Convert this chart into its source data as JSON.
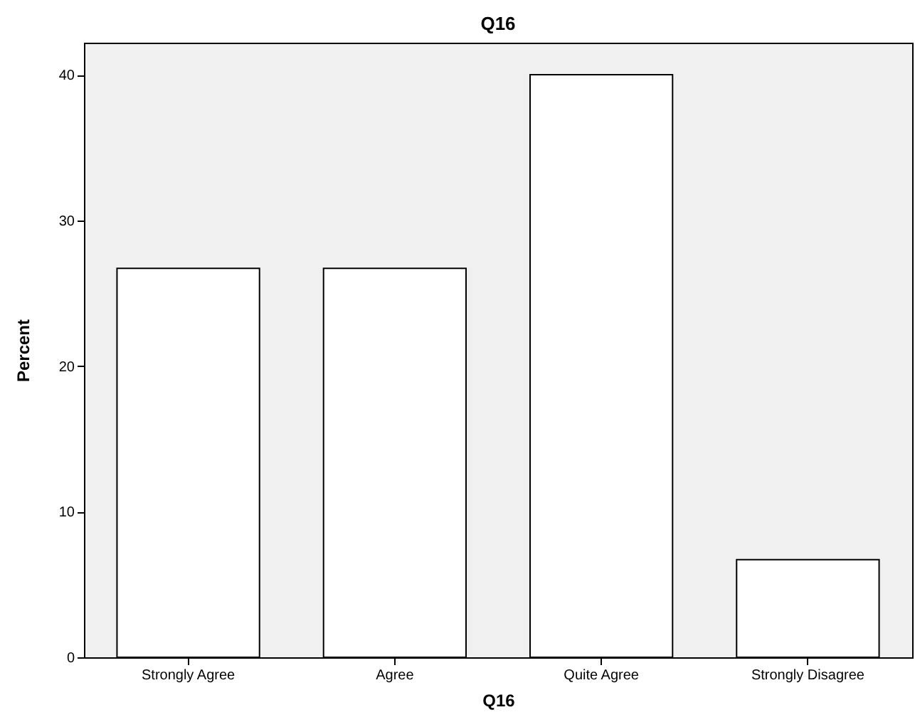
{
  "chart_data": {
    "type": "bar",
    "title": "Q16",
    "xlabel": "Q16",
    "ylabel": "Percent",
    "categories": [
      "Strongly Agree",
      "Agree",
      "Quite Agree",
      "Strongly Disagree"
    ],
    "values": [
      26.7,
      26.7,
      40,
      6.7
    ],
    "color": "#ffffff",
    "ylim": [
      0,
      42.2
    ],
    "yticks": [
      0,
      10,
      20,
      30,
      40
    ],
    "grid": false
  }
}
